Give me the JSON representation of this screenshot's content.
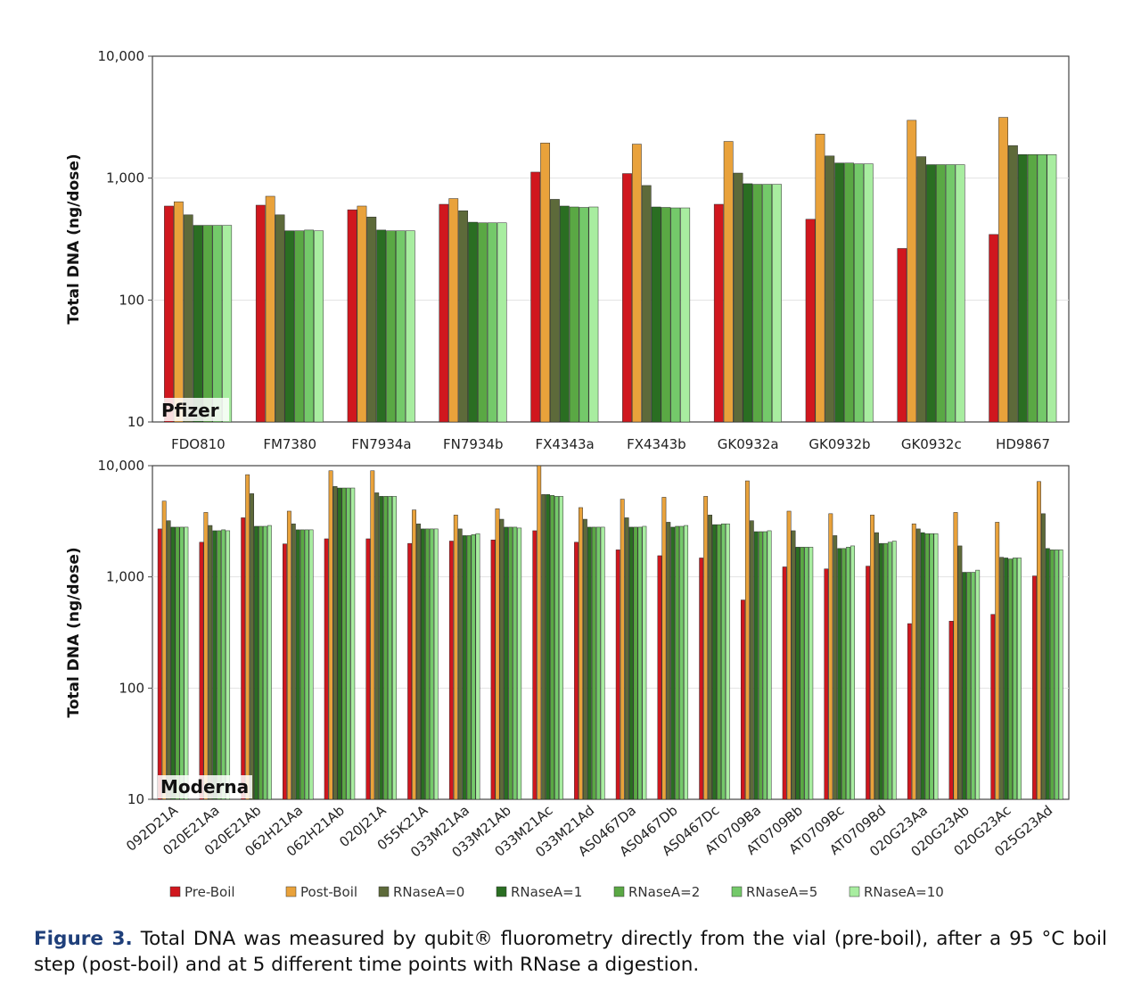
{
  "chart_data": [
    {
      "type": "bar",
      "panel_label": "Pfizer",
      "ylabel": "Total DNA (ng/dose)",
      "yscale": "log",
      "ylim": [
        10,
        10000
      ],
      "yticks": [
        10,
        100,
        1000,
        10000
      ],
      "ytick_labels": [
        "10",
        "100",
        "1,000",
        "10,000"
      ],
      "categories": [
        "FDO810",
        "FM7380",
        "FN7934a",
        "FN7934b",
        "FX4343a",
        "FX4343b",
        "GK0932a",
        "GK0932b",
        "GK0932c",
        "HD9867"
      ],
      "series": [
        {
          "name": "Pre-Boil",
          "values": [
            590,
            600,
            550,
            610,
            1120,
            1090,
            610,
            460,
            265,
            345
          ]
        },
        {
          "name": "Post-Boil",
          "values": [
            640,
            710,
            590,
            680,
            1940,
            1900,
            2000,
            2300,
            2980,
            3150
          ]
        },
        {
          "name": "RNaseA=0",
          "values": [
            500,
            500,
            480,
            540,
            670,
            870,
            1100,
            1520,
            1500,
            1850
          ]
        },
        {
          "name": "RNaseA=1",
          "values": [
            410,
            370,
            375,
            435,
            590,
            580,
            900,
            1330,
            1290,
            1560
          ]
        },
        {
          "name": "RNaseA=2",
          "values": [
            410,
            370,
            370,
            430,
            580,
            575,
            890,
            1330,
            1290,
            1560
          ]
        },
        {
          "name": "RNaseA=5",
          "values": [
            410,
            375,
            370,
            430,
            575,
            570,
            890,
            1310,
            1290,
            1560
          ]
        },
        {
          "name": "RNaseA=10",
          "values": [
            410,
            370,
            370,
            430,
            580,
            570,
            890,
            1310,
            1290,
            1560
          ]
        }
      ]
    },
    {
      "type": "bar",
      "panel_label": "Moderna",
      "ylabel": "Total DNA (ng/dose)",
      "yscale": "log",
      "ylim": [
        10,
        10000
      ],
      "yticks": [
        10,
        100,
        1000,
        10000
      ],
      "ytick_labels": [
        "10",
        "100",
        "1,000",
        "10,000"
      ],
      "categories": [
        "092D21A",
        "020E21Aa",
        "020E21Ab",
        "062H21Aa",
        "062H21Ab",
        "020J21A",
        "055K21A",
        "033M21Aa",
        "033M21Ab",
        "033M21Ac",
        "033M21Ad",
        "AS0467Da",
        "AS0467Db",
        "AS0467Dc",
        "AT0709Ba",
        "AT0709Bb",
        "AT0709Bc",
        "AT0709Bd",
        "020G23Aa",
        "020G23Ab",
        "020G23Ac",
        "025G23Ad"
      ],
      "series": [
        {
          "name": "Pre-Boil",
          "values": [
            2700,
            2050,
            3400,
            1980,
            2200,
            2200,
            2000,
            2100,
            2150,
            2600,
            2050,
            1750,
            1550,
            1480,
            620,
            1230,
            1180,
            1250,
            380,
            400,
            460,
            1020
          ]
        },
        {
          "name": "Post-Boil",
          "values": [
            4800,
            3800,
            8300,
            3900,
            9000,
            9000,
            4000,
            3600,
            4100,
            10000,
            4200,
            5000,
            5200,
            5300,
            7300,
            3900,
            3700,
            3600,
            3000,
            3800,
            3100,
            7200
          ]
        },
        {
          "name": "RNaseA=0",
          "values": [
            3200,
            2900,
            5600,
            3000,
            6500,
            5700,
            3000,
            2700,
            3300,
            5500,
            3300,
            3400,
            3100,
            3600,
            3200,
            2600,
            2350,
            2500,
            2700,
            1900,
            1500,
            3700
          ]
        },
        {
          "name": "RNaseA=1",
          "values": [
            2800,
            2600,
            2850,
            2650,
            6300,
            5300,
            2700,
            2350,
            2800,
            5500,
            2800,
            2800,
            2800,
            2950,
            2550,
            1850,
            1800,
            2000,
            2500,
            1100,
            1480,
            1800
          ]
        },
        {
          "name": "RNaseA=2",
          "values": [
            2800,
            2600,
            2850,
            2650,
            6300,
            5300,
            2700,
            2350,
            2800,
            5400,
            2800,
            2800,
            2850,
            2950,
            2550,
            1850,
            1800,
            2000,
            2450,
            1100,
            1450,
            1750
          ]
        },
        {
          "name": "RNaseA=5",
          "values": [
            2800,
            2650,
            2850,
            2650,
            6300,
            5300,
            2700,
            2400,
            2800,
            5300,
            2800,
            2800,
            2850,
            3000,
            2550,
            1850,
            1850,
            2050,
            2450,
            1100,
            1480,
            1750
          ]
        },
        {
          "name": "RNaseA=10",
          "values": [
            2800,
            2600,
            2900,
            2650,
            6300,
            5300,
            2700,
            2450,
            2750,
            5300,
            2800,
            2850,
            2900,
            3000,
            2600,
            1850,
            1900,
            2100,
            2450,
            1150,
            1480,
            1750
          ]
        }
      ]
    }
  ],
  "legend": [
    {
      "name": "Pre-Boil",
      "color": "#d0171e"
    },
    {
      "name": "Post-Boil",
      "color": "#e9a23b"
    },
    {
      "name": "RNaseA=0",
      "color": "#5d6a3a"
    },
    {
      "name": "RNaseA=1",
      "color": "#2a6e22"
    },
    {
      "name": "RNaseA=2",
      "color": "#5aa844"
    },
    {
      "name": "RNaseA=5",
      "color": "#74c96a"
    },
    {
      "name": "RNaseA=10",
      "color": "#a8eda0"
    }
  ],
  "caption": {
    "label": "Figure 3.",
    "text": "Total DNA was measured by qubit® fluorometry directly from the vial (pre-boil), after a 95 °C boil step (post-boil) and at 5 different time points with RNase a digestion."
  }
}
